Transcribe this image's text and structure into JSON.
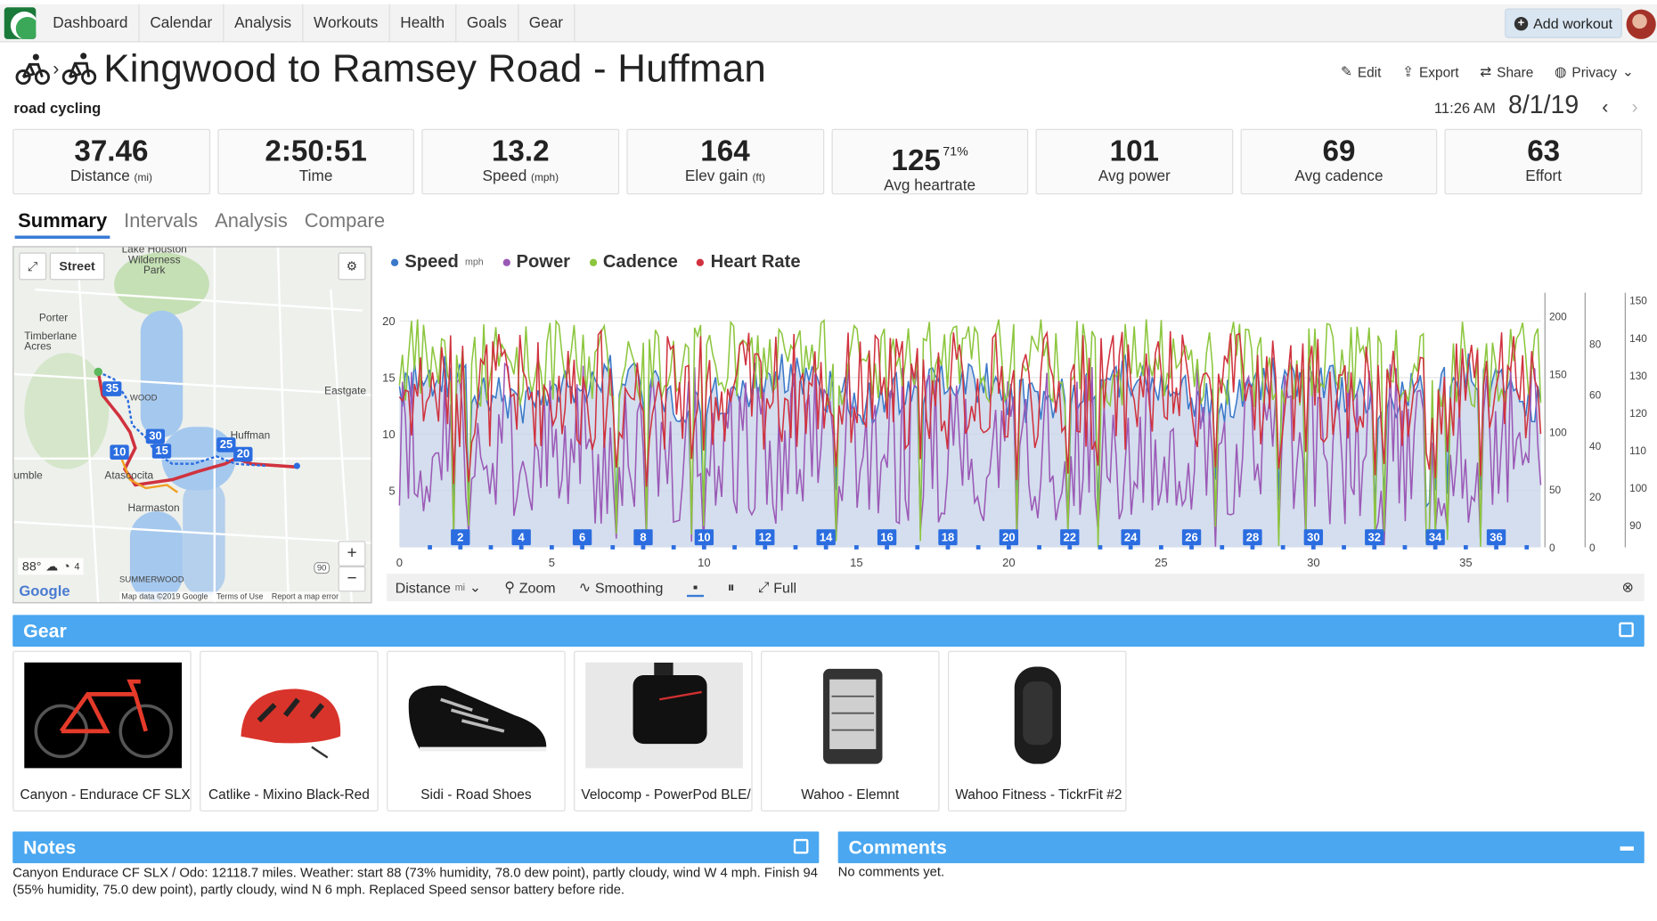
{
  "nav": {
    "items": [
      "Dashboard",
      "Calendar",
      "Analysis",
      "Workouts",
      "Health",
      "Goals",
      "Gear"
    ],
    "add_workout": "Add workout"
  },
  "workout": {
    "title": "Kingwood to Ramsey Road - Huffman",
    "sport": "road cycling",
    "time": "11:26 AM",
    "date": "8/1/19"
  },
  "actions": {
    "edit": "Edit",
    "export": "Export",
    "share": "Share",
    "privacy": "Privacy"
  },
  "stats": [
    {
      "value": "37.46",
      "label": "Distance",
      "unit": "(mi)",
      "sup": ""
    },
    {
      "value": "2:50:51",
      "label": "Time",
      "unit": "",
      "sup": ""
    },
    {
      "value": "13.2",
      "label": "Speed",
      "unit": "(mph)",
      "sup": ""
    },
    {
      "value": "164",
      "label": "Elev gain",
      "unit": "(ft)",
      "sup": ""
    },
    {
      "value": "125",
      "label": "Avg heartrate",
      "unit": "",
      "sup": "71%"
    },
    {
      "value": "101",
      "label": "Avg power",
      "unit": "",
      "sup": ""
    },
    {
      "value": "69",
      "label": "Avg cadence",
      "unit": "",
      "sup": ""
    },
    {
      "value": "63",
      "label": "Effort",
      "unit": "",
      "sup": ""
    }
  ],
  "tabs": [
    "Summary",
    "Intervals",
    "Analysis",
    "Compare"
  ],
  "map": {
    "type_label": "Street",
    "labels": {
      "lake": "Lake Houston Wilderness Park",
      "porter": "Porter",
      "timberlane": "Timberlane Acres",
      "eastgate": "Eastgate",
      "huffman": "Huffman",
      "atascocita": "Atascocita",
      "harmaston": "Harmaston",
      "humble": "umble",
      "summerwood": "SUMMERWOOD",
      "wood": "WOOD"
    },
    "markers": [
      "35",
      "30",
      "10",
      "15",
      "25",
      "20"
    ],
    "weather": "88°",
    "wind": "4",
    "route_shield": "90",
    "attribution": "Map data ©2019 Google",
    "terms": "Terms of Use",
    "report": "Report a map error",
    "google": "Google"
  },
  "chart_controls": {
    "axis": "Distance",
    "axis_unit": "mi",
    "zoom": "Zoom",
    "smoothing": "Smoothing",
    "full": "Full"
  },
  "chart_data": {
    "type": "line",
    "series": [
      {
        "name": "Speed",
        "unit": "mph",
        "color": "#3a78c9"
      },
      {
        "name": "Power",
        "color": "#9b59b6"
      },
      {
        "name": "Cadence",
        "color": "#8cc63e"
      },
      {
        "name": "Heart Rate",
        "color": "#d0323e"
      }
    ],
    "x_ticks": [
      0,
      5,
      10,
      15,
      20,
      25,
      30,
      35
    ],
    "xlim": [
      0,
      37.46
    ],
    "speed_ticks": [
      5,
      10,
      15,
      20
    ],
    "power_ticks": [
      0,
      50,
      100,
      150,
      200
    ],
    "cadence_ticks": [
      0,
      20,
      40,
      60,
      80
    ],
    "hr_ticks": [
      90,
      100,
      110,
      120,
      130,
      140,
      150
    ],
    "lap_markers": [
      2,
      4,
      6,
      8,
      10,
      12,
      14,
      16,
      18,
      20,
      22,
      24,
      26,
      28,
      30,
      32,
      34,
      36
    ]
  },
  "gear": {
    "title": "Gear",
    "items": [
      {
        "name": "Canyon - Endurace CF SLX I",
        "kind": "bike"
      },
      {
        "name": "Catlike - Mixino Black-Red",
        "kind": "helmet"
      },
      {
        "name": "Sidi - Road Shoes",
        "kind": "shoe"
      },
      {
        "name": "Velocomp - PowerPod BLE/",
        "kind": "powerpod"
      },
      {
        "name": "Wahoo - Elemnt",
        "kind": "computer"
      },
      {
        "name": "Wahoo Fitness - TickrFit #2",
        "kind": "hrm"
      }
    ]
  },
  "notes": {
    "title": "Notes",
    "text": "Canyon Endurace CF SLX / Odo: 12118.7 miles. Weather: start 88 (73% humidity, 78.0 dew point), partly cloudy, wind W 4 mph. Finish 94 (55% humidity, 75.0 dew point), partly cloudy, wind N 6 mph. Replaced Speed sensor battery before ride."
  },
  "comments": {
    "title": "Comments",
    "text": "No comments yet."
  }
}
